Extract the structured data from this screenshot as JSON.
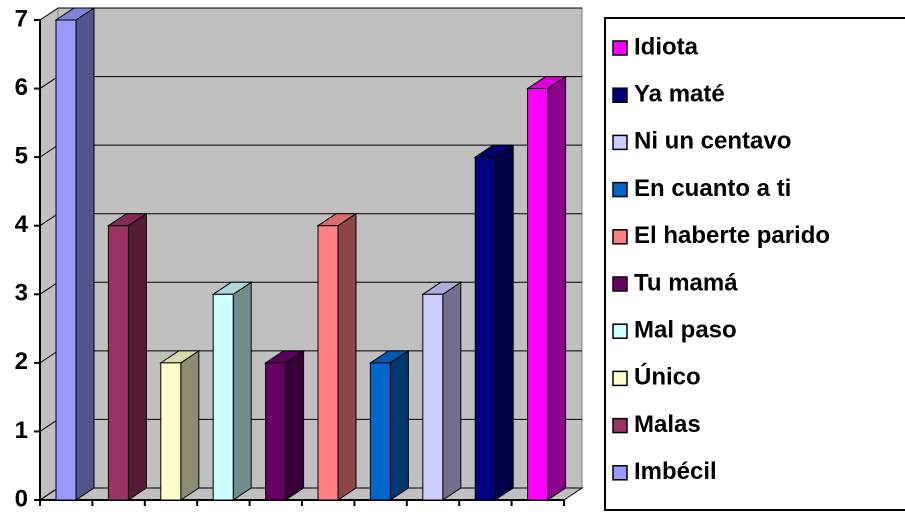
{
  "chart_data": {
    "type": "bar",
    "series": [
      {
        "name": "Imbécil",
        "color": "#9999FF",
        "values": [
          7
        ]
      },
      {
        "name": "Malas",
        "color": "#993366",
        "values": [
          4
        ]
      },
      {
        "name": "Único",
        "color": "#FFFFCC",
        "values": [
          2
        ]
      },
      {
        "name": "Mal paso",
        "color": "#CCFFFF",
        "values": [
          3
        ]
      },
      {
        "name": "Tu mamá",
        "color": "#660066",
        "values": [
          2
        ]
      },
      {
        "name": "El haberte parido",
        "color": "#FF8080",
        "values": [
          4
        ]
      },
      {
        "name": "En cuanto a ti",
        "color": "#0066CC",
        "values": [
          2
        ]
      },
      {
        "name": "Ni un centavo",
        "color": "#CCCCFF",
        "values": [
          3
        ]
      },
      {
        "name": "Ya maté",
        "color": "#000080",
        "values": [
          5
        ]
      },
      {
        "name": "Idiota",
        "color": "#FF00FF",
        "values": [
          6
        ]
      }
    ],
    "ylim": [
      0,
      7
    ],
    "yticks": [
      0,
      1,
      2,
      3,
      4,
      5,
      6,
      7
    ],
    "grid": true,
    "legend": "right"
  }
}
